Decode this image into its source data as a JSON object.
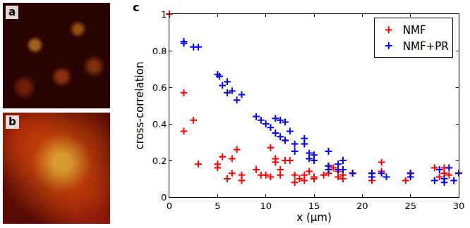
{
  "images": [
    {
      "label": "a"
    },
    {
      "label": "b"
    }
  ],
  "chart_data": {
    "type": "scatter",
    "panel_label": "c",
    "x_label": "x (µm)",
    "y_label": "cross-correlation",
    "xlim": [
      0,
      30
    ],
    "xticks": [
      0,
      5,
      10,
      15,
      20,
      25,
      30
    ],
    "ylim": [
      0,
      1
    ],
    "yticks": [
      0,
      0.2,
      0.4,
      0.6,
      0.8,
      1
    ],
    "grid": false,
    "legend": "top-right",
    "marker": "cross",
    "series": [
      {
        "name": "NMF",
        "color": "#ff0000",
        "x": [
          0,
          1.5,
          1.5,
          2.5,
          3,
          5,
          5,
          5.5,
          6,
          6.5,
          6.5,
          7,
          7.5,
          7.5,
          9,
          9.5,
          10,
          10.5,
          10.5,
          11,
          11,
          11.5,
          11.5,
          12,
          12,
          12.5,
          13,
          13,
          13.5,
          14,
          14,
          14.5,
          15,
          15,
          16,
          16.5,
          16.5,
          17,
          17.5,
          17.5,
          18,
          18,
          19,
          21,
          21,
          22,
          22,
          24.5,
          25,
          27.5,
          28,
          28.5,
          28.5,
          29,
          30
        ],
        "values": [
          1.0,
          0.57,
          0.36,
          0.42,
          0.18,
          0.18,
          0.16,
          0.22,
          0.1,
          0.13,
          0.21,
          0.26,
          0.12,
          0.09,
          0.15,
          0.12,
          0.12,
          0.27,
          0.11,
          0.21,
          0.19,
          0.15,
          0.12,
          0.31,
          0.2,
          0.2,
          0.12,
          0.08,
          0.1,
          0.12,
          0.09,
          0.14,
          0.11,
          0.1,
          0.12,
          0.17,
          0.13,
          0.16,
          0.14,
          0.11,
          0.12,
          0.1,
          0.13,
          0.09,
          0.13,
          0.19,
          0.14,
          0.09,
          0.13,
          0.16,
          0.11,
          0.16,
          0.13,
          0.12,
          0.13
        ]
      },
      {
        "name": "NMF+PR",
        "color": "#0000ff",
        "x": [
          1.5,
          1.5,
          2.5,
          3,
          5,
          5.2,
          5.5,
          6,
          6,
          6.5,
          7,
          7.5,
          9,
          9.5,
          10,
          10.5,
          11,
          11,
          11.5,
          11.5,
          12,
          12,
          12.5,
          13,
          13,
          14,
          14,
          14.5,
          14.5,
          15,
          15,
          16.5,
          16.5,
          16.5,
          17.5,
          17.5,
          18,
          18,
          19,
          21,
          21,
          22,
          22.5,
          25,
          25,
          27.5,
          28,
          28.5,
          28.5,
          29,
          29.5,
          30
        ],
        "values": [
          0.85,
          0.84,
          0.82,
          0.82,
          0.67,
          0.66,
          0.61,
          0.63,
          0.57,
          0.58,
          0.53,
          0.56,
          0.44,
          0.42,
          0.4,
          0.38,
          0.43,
          0.35,
          0.42,
          0.33,
          0.41,
          0.31,
          0.36,
          0.29,
          0.25,
          0.32,
          0.29,
          0.24,
          0.21,
          0.23,
          0.2,
          0.15,
          0.25,
          0.17,
          0.18,
          0.15,
          0.2,
          0.15,
          0.13,
          0.13,
          0.11,
          0.13,
          0.11,
          0.13,
          0.11,
          0.09,
          0.15,
          0.08,
          0.1,
          0.16,
          0.09,
          0.13
        ]
      }
    ]
  }
}
